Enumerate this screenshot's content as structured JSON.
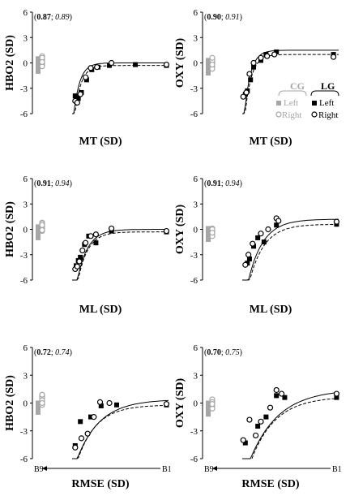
{
  "chart_data": [
    {
      "id": "p1",
      "type": "scatter",
      "ylabel": "HBO2 (SD)",
      "xlabel": "MT (SD)",
      "corr_left": "0.87",
      "corr_right": "0.89",
      "ylim": [
        -6,
        6
      ],
      "yticks": [
        6,
        3,
        0,
        -3,
        -6
      ],
      "cg_left": [
        -0.1,
        -0.4,
        -0.7,
        -1.0,
        0.2,
        0.5,
        -0.6,
        0.0,
        -0.9,
        0.3,
        -0.2,
        -0.5
      ],
      "cg_right": [
        0.8,
        0.5,
        0.2,
        -0.2,
        0.0,
        0.3,
        -0.4,
        0.6,
        0.1
      ],
      "lg_left": [
        [
          0.1,
          -3.9
        ],
        [
          0.13,
          -4.2
        ],
        [
          0.16,
          -3.5
        ],
        [
          0.21,
          -2.0
        ],
        [
          0.26,
          -0.8
        ],
        [
          0.32,
          -0.5
        ],
        [
          0.43,
          -0.3
        ],
        [
          0.68,
          -0.2
        ],
        [
          0.98,
          -0.3
        ]
      ],
      "lg_right": [
        [
          0.1,
          -4.5
        ],
        [
          0.12,
          -4.7
        ],
        [
          0.15,
          -3.7
        ],
        [
          0.2,
          -1.7
        ],
        [
          0.25,
          -0.6
        ],
        [
          0.31,
          -0.5
        ],
        [
          0.45,
          0.0
        ],
        [
          0.98,
          -0.2
        ]
      ],
      "fit_solid": {
        "a": 0.0,
        "b": -8.0,
        "k": 17.0
      },
      "fit_dashed": {
        "a": -0.3,
        "b": -9.0,
        "k": 16.5
      },
      "legend": true
    },
    {
      "id": "p2",
      "type": "scatter",
      "ylabel": "OXY (SD)",
      "xlabel": "MT (SD)",
      "corr_left": "0.90",
      "corr_right": "0.91",
      "ylim": [
        -6,
        6
      ],
      "yticks": [
        6,
        3,
        0,
        -3,
        -6
      ],
      "cg_left": [
        -1.2,
        -0.8,
        -0.5,
        -0.2,
        0.1,
        -1.0,
        -0.6,
        0.3,
        -0.3,
        -0.9
      ],
      "cg_right": [
        0.5,
        0.2,
        -0.1,
        -0.4,
        0.0,
        0.3,
        -0.7,
        0.6,
        -0.2
      ],
      "lg_left": [
        [
          0.1,
          -3.7
        ],
        [
          0.12,
          -3.3
        ],
        [
          0.15,
          -2.0
        ],
        [
          0.18,
          -0.5
        ],
        [
          0.25,
          0.3
        ],
        [
          0.3,
          1.0
        ],
        [
          0.4,
          1.3
        ],
        [
          0.95,
          1.0
        ]
      ],
      "lg_right": [
        [
          0.08,
          -4.0
        ],
        [
          0.11,
          -3.5
        ],
        [
          0.14,
          -1.3
        ],
        [
          0.18,
          0.0
        ],
        [
          0.25,
          0.6
        ],
        [
          0.31,
          0.8
        ],
        [
          0.38,
          1.0
        ],
        [
          0.95,
          0.7
        ]
      ],
      "fit_solid": {
        "a": 1.5,
        "b": -11.0,
        "k": 17.0
      },
      "fit_dashed": {
        "a": 1.0,
        "b": -11.0,
        "k": 16.0
      },
      "legend": true
    },
    {
      "id": "p3",
      "type": "scatter",
      "ylabel": "HBO2 (SD)",
      "xlabel": "ML (SD)",
      "corr_left": "0.91",
      "corr_right": "0.94",
      "ylim": [
        -6,
        6
      ],
      "yticks": [
        6,
        3,
        0,
        -3,
        -6
      ],
      "cg_left": [
        -0.2,
        -0.5,
        -0.8,
        -1.0,
        0.0,
        -0.4,
        -0.7,
        0.3,
        -0.6,
        -0.9,
        0.1
      ],
      "cg_right": [
        0.8,
        0.6,
        0.4,
        0.1,
        -0.2,
        0.3,
        0.7,
        -0.1,
        0.5
      ],
      "lg_left": [
        [
          0.11,
          -4.3
        ],
        [
          0.13,
          -3.7
        ],
        [
          0.15,
          -3.3
        ],
        [
          0.19,
          -1.8
        ],
        [
          0.23,
          -0.8
        ],
        [
          0.3,
          -1.6
        ],
        [
          0.45,
          -0.2
        ],
        [
          0.98,
          -0.3
        ]
      ],
      "lg_right": [
        [
          0.1,
          -4.7
        ],
        [
          0.12,
          -4.4
        ],
        [
          0.14,
          -3.8
        ],
        [
          0.17,
          -2.5
        ],
        [
          0.2,
          -1.6
        ],
        [
          0.25,
          -0.8
        ],
        [
          0.3,
          -0.6
        ],
        [
          0.45,
          0.1
        ],
        [
          0.98,
          -0.2
        ]
      ],
      "fit_solid": {
        "a": 0.0,
        "b": -10.0,
        "k": 10.0
      },
      "fit_dashed": {
        "a": -0.3,
        "b": -10.5,
        "k": 10.5
      },
      "legend": false
    },
    {
      "id": "p4",
      "type": "scatter",
      "ylabel": "OXY (SD)",
      "xlabel": "ML (SD)",
      "corr_left": "0.91",
      "corr_right": "0.94",
      "ylim": [
        -6,
        6
      ],
      "yticks": [
        6,
        3,
        0,
        -3,
        -6
      ],
      "cg_left": [
        -1.2,
        -0.9,
        -0.6,
        -0.3,
        -0.8,
        -1.0,
        0.1,
        -0.5
      ],
      "cg_right": [
        0.1,
        -0.2,
        -0.5,
        -0.8,
        0.0,
        -0.4
      ],
      "lg_left": [
        [
          0.12,
          -4.0
        ],
        [
          0.14,
          -3.5
        ],
        [
          0.18,
          -2.0
        ],
        [
          0.22,
          -1.0
        ],
        [
          0.28,
          -1.5
        ],
        [
          0.4,
          0.5
        ],
        [
          0.98,
          0.6
        ]
      ],
      "lg_right": [
        [
          0.1,
          -4.2
        ],
        [
          0.13,
          -3.0
        ],
        [
          0.17,
          -1.7
        ],
        [
          0.25,
          -0.5
        ],
        [
          0.32,
          0.0
        ],
        [
          0.4,
          1.3
        ],
        [
          0.42,
          1.0
        ],
        [
          0.98,
          0.9
        ]
      ],
      "fit_solid": {
        "a": 1.2,
        "b": -11.0,
        "k": 7.0
      },
      "fit_dashed": {
        "a": 0.6,
        "b": -11.0,
        "k": 7.0
      },
      "legend": false
    },
    {
      "id": "p5",
      "type": "scatter",
      "ylabel": "HBO2 (SD)",
      "xlabel": "RMSE (SD)",
      "corr_left": "0.72",
      "corr_right": "0.74",
      "ylim": [
        -6,
        6
      ],
      "yticks": [
        6,
        3,
        0,
        -3,
        -6
      ],
      "x_start_label": "B9",
      "x_end_label": "B1",
      "cg_left": [
        -1.0,
        -0.7,
        -0.5,
        -0.2,
        -0.8,
        0.0,
        -0.6
      ],
      "cg_right": [
        0.8,
        0.5,
        0.2,
        0.6,
        -0.2,
        0.3,
        0.9,
        0.0
      ],
      "lg_left": [
        [
          0.1,
          -4.6
        ],
        [
          0.15,
          -2.0
        ],
        [
          0.25,
          -1.5
        ],
        [
          0.35,
          -0.3
        ],
        [
          0.5,
          -0.2
        ],
        [
          0.98,
          -0.2
        ]
      ],
      "lg_right": [
        [
          0.1,
          -4.8
        ],
        [
          0.16,
          -3.8
        ],
        [
          0.22,
          -3.3
        ],
        [
          0.28,
          -1.5
        ],
        [
          0.34,
          0.1
        ],
        [
          0.43,
          0.0
        ],
        [
          0.98,
          -0.1
        ]
      ],
      "fit_solid": {
        "a": 0.4,
        "b": -8.0,
        "k": 4.5
      },
      "fit_dashed": {
        "a": -0.2,
        "b": -8.0,
        "k": 5.5
      },
      "legend": false
    },
    {
      "id": "p6",
      "type": "scatter",
      "ylabel": "OXY (SD)",
      "xlabel": "RMSE (SD)",
      "corr_left": "0.70",
      "corr_right": "0.75",
      "ylim": [
        -6,
        6
      ],
      "yticks": [
        6,
        3,
        0,
        -3,
        -6
      ],
      "x_start_label": "B9",
      "x_end_label": "B1",
      "cg_left": [
        -1.2,
        -1.0,
        -0.7,
        -0.4,
        -0.8,
        0.0,
        -0.5
      ],
      "cg_right": [
        0.3,
        0.0,
        -0.3,
        -0.6,
        0.4,
        0.1,
        -0.1
      ],
      "lg_left": [
        [
          0.1,
          -4.3
        ],
        [
          0.22,
          -2.5
        ],
        [
          0.3,
          -1.5
        ],
        [
          0.4,
          0.8
        ],
        [
          0.48,
          0.6
        ],
        [
          0.98,
          0.6
        ]
      ],
      "lg_right": [
        [
          0.08,
          -4.0
        ],
        [
          0.14,
          -1.8
        ],
        [
          0.2,
          -3.5
        ],
        [
          0.25,
          -2.0
        ],
        [
          0.34,
          -0.5
        ],
        [
          0.4,
          1.4
        ],
        [
          0.45,
          1.0
        ],
        [
          0.98,
          1.0
        ]
      ],
      "fit_solid": {
        "a": 1.5,
        "b": -10.0,
        "k": 3.6
      },
      "fit_dashed": {
        "a": 0.7,
        "b": -10.0,
        "k": 4.3
      },
      "legend": false
    }
  ],
  "legend": {
    "cg_title": "CG",
    "lg_title": "LG",
    "left": "Left",
    "right": "Right",
    "cg_color": "#a6a6a6",
    "lg_color": "#000000"
  }
}
